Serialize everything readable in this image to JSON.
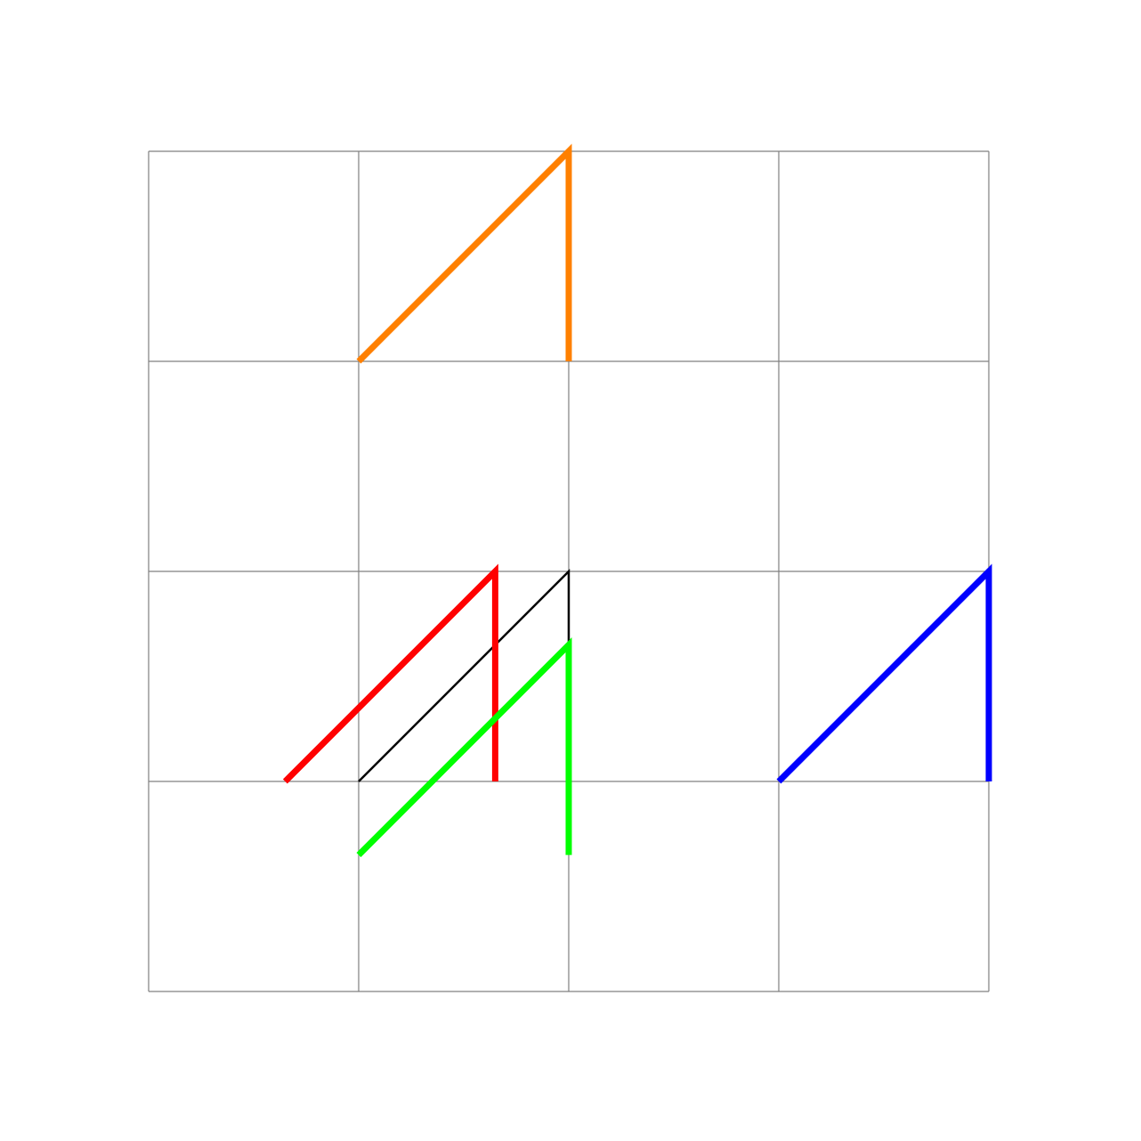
{
  "diagram": {
    "grid": {
      "columns": 4,
      "rows": 4,
      "line_color": "#808080"
    },
    "shapes": [
      {
        "name": "reference-shape-black",
        "color": "#000000",
        "weight": "thin",
        "points": [
          [
            1,
            1
          ],
          [
            2,
            2
          ],
          [
            2,
            1.65
          ]
        ]
      },
      {
        "name": "shape-red",
        "color": "#ff0000",
        "weight": "thick",
        "points": [
          [
            0.65,
            1
          ],
          [
            1.65,
            2
          ],
          [
            1.65,
            1
          ]
        ]
      },
      {
        "name": "shape-green",
        "color": "#00ff00",
        "weight": "thick",
        "points": [
          [
            1,
            0.65
          ],
          [
            2,
            1.65
          ],
          [
            2,
            0.65
          ]
        ]
      },
      {
        "name": "shape-orange",
        "color": "#ff8000",
        "weight": "thick",
        "points": [
          [
            1,
            3
          ],
          [
            2,
            4
          ],
          [
            2,
            3
          ]
        ]
      },
      {
        "name": "shape-blue",
        "color": "#0000ff",
        "weight": "thick",
        "points": [
          [
            3,
            1
          ],
          [
            4,
            2
          ],
          [
            4,
            1
          ]
        ]
      }
    ]
  }
}
